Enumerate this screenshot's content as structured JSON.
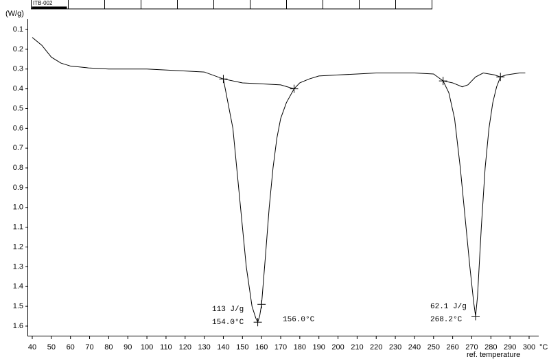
{
  "chart_data": {
    "type": "line",
    "header_label": "ITB-002",
    "y_label": "(W/g)",
    "x_unit": "°C",
    "x_label": "ref. temperature",
    "xlim": [
      40,
      300
    ],
    "ylim": [
      0.05,
      1.65
    ],
    "y_inverted": true,
    "color": "#000000",
    "xticks": [
      40,
      50,
      60,
      70,
      80,
      90,
      100,
      110,
      120,
      130,
      140,
      150,
      160,
      170,
      180,
      190,
      200,
      210,
      220,
      230,
      240,
      250,
      260,
      270,
      280,
      290,
      300
    ],
    "yticks": [
      0.1,
      0.2,
      0.3,
      0.4,
      0.5,
      0.6,
      0.7,
      0.8,
      0.9,
      {
        "value": 1,
        "label": "1.0"
      },
      1.1,
      1.2,
      1.3,
      1.4,
      1.5,
      1.6
    ],
    "lines": [
      {
        "x": [
          40,
          45,
          50,
          55,
          60,
          70,
          80,
          100,
          120,
          130,
          140,
          145,
          148,
          150,
          152,
          155,
          157,
          158,
          159,
          160,
          162,
          164,
          166,
          168,
          170,
          173,
          177,
          180,
          185,
          190,
          200,
          210,
          220,
          230,
          240,
          250,
          255,
          258,
          261,
          264,
          267,
          269,
          271,
          272,
          273,
          275,
          277,
          279,
          281,
          283,
          285,
          288,
          295,
          298
        ],
        "values": [
          0.14,
          0.18,
          0.24,
          0.27,
          0.285,
          0.295,
          0.3,
          0.3,
          0.31,
          0.315,
          0.35,
          0.6,
          0.9,
          1.1,
          1.3,
          1.5,
          1.56,
          1.58,
          1.55,
          1.49,
          1.25,
          1.0,
          0.8,
          0.65,
          0.55,
          0.47,
          0.4,
          0.37,
          0.35,
          0.335,
          0.33,
          0.325,
          0.32,
          0.32,
          0.32,
          0.325,
          0.36,
          0.42,
          0.55,
          0.8,
          1.1,
          1.3,
          1.48,
          1.55,
          1.45,
          1.1,
          0.8,
          0.6,
          0.47,
          0.39,
          0.34,
          0.33,
          0.32,
          0.32
        ]
      },
      {
        "x": [
          140,
          150,
          160,
          170,
          177
        ],
        "values": [
          0.35,
          0.37,
          0.375,
          0.38,
          0.4
        ]
      },
      {
        "x": [
          255,
          260,
          265,
          268,
          272,
          276,
          282,
          285
        ],
        "values": [
          0.36,
          0.37,
          0.39,
          0.38,
          0.34,
          0.32,
          0.33,
          0.34
        ]
      }
    ],
    "markers": {
      "x": [
        140,
        177,
        158,
        160,
        255,
        285,
        272
      ],
      "values": [
        0.35,
        0.4,
        1.58,
        1.49,
        0.36,
        0.34,
        1.55
      ]
    },
    "annotations": [
      "113 J/g",
      "154.0°C",
      "156.0°C",
      "62.1 J/g",
      "268.2°C"
    ]
  }
}
